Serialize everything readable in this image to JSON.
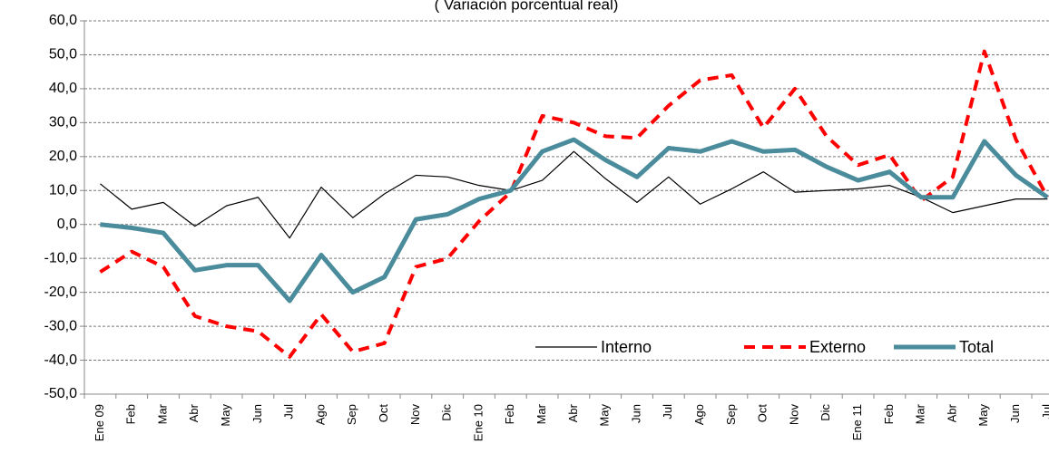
{
  "chart_data": {
    "type": "line",
    "subtitle": "( Variación porcentual real)",
    "categories": [
      "Ene 09",
      "Feb",
      "Mar",
      "Abr",
      "May",
      "Jun",
      "Jul",
      "Ago",
      "Sep",
      "Oct",
      "Nov",
      "Dic",
      "Ene 10",
      "Feb",
      "Mar",
      "Abr",
      "May",
      "Jun",
      "Jul",
      "Ago",
      "Sep",
      "Oct",
      "Nov",
      "Dic",
      "Ene 11",
      "Feb",
      "Mar",
      "Abr",
      "May",
      "Jun",
      "Jul"
    ],
    "series": [
      {
        "name": "Interno",
        "color": "#000000",
        "width": 1.2,
        "dash": "none",
        "values": [
          12,
          4.5,
          6.5,
          -0.5,
          5.5,
          8,
          -4,
          11,
          2,
          9,
          14.5,
          14,
          11.5,
          10,
          13,
          21.5,
          13.5,
          6.5,
          14,
          6,
          10.5,
          15.5,
          9.5,
          10,
          10.5,
          11.5,
          8,
          3.5,
          5.5,
          7.5,
          7.5
        ]
      },
      {
        "name": "Externo",
        "color": "#ff0000",
        "width": 4,
        "dash": "12 8",
        "values": [
          -14,
          -8,
          -12.5,
          -27,
          -30,
          -31.5,
          -39,
          -26.5,
          -37.5,
          -35,
          -12.5,
          -10,
          1,
          9.5,
          32,
          30,
          26,
          25.5,
          35,
          42.5,
          44,
          28.5,
          40,
          26,
          17.5,
          20.5,
          7,
          14,
          51,
          25,
          8
        ]
      },
      {
        "name": "Total",
        "color": "#4a8c9c",
        "width": 5,
        "dash": "none",
        "values": [
          0,
          -1,
          -2.5,
          -13.5,
          -12,
          -12,
          -22.5,
          -9,
          -20,
          -15.5,
          1.5,
          3,
          7.5,
          10,
          21.5,
          25,
          19,
          14,
          22.5,
          21.5,
          24.5,
          21.5,
          22,
          17,
          13,
          15.5,
          8,
          8,
          24.5,
          14.5,
          8
        ]
      }
    ],
    "ylim": [
      -50,
      60
    ],
    "yticks": [
      {
        "value": -50,
        "label": "-50,0"
      },
      {
        "value": -40,
        "label": "-40,0"
      },
      {
        "value": -30,
        "label": "-30,0"
      },
      {
        "value": -20,
        "label": "-20,0"
      },
      {
        "value": -10,
        "label": "-10,0"
      },
      {
        "value": 0,
        "label": "0,0"
      },
      {
        "value": 10,
        "label": "10,0"
      },
      {
        "value": 20,
        "label": "20,0"
      },
      {
        "value": 30,
        "label": "30,0"
      },
      {
        "value": 40,
        "label": "40,0"
      },
      {
        "value": 50,
        "label": "50,0"
      },
      {
        "value": 60,
        "label": "60,0"
      }
    ],
    "grid": true,
    "legend": "lower right"
  }
}
